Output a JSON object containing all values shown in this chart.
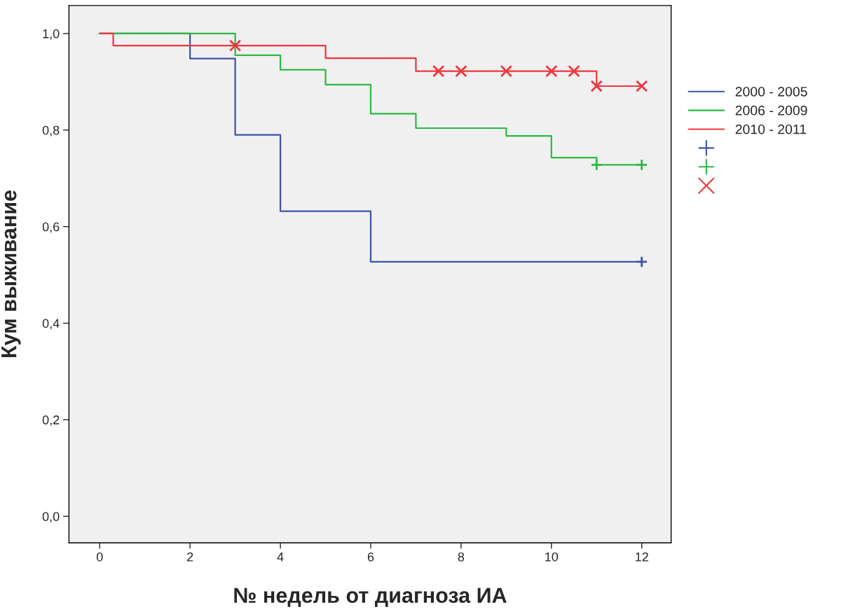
{
  "chart_data": {
    "type": "step",
    "xlabel": "№ недель от диагноза ИА",
    "ylabel": "Кум выживание",
    "xlim": [
      -0.68,
      12.65
    ],
    "ylim": [
      -0.055,
      1.058
    ],
    "xticks": [
      0,
      2,
      4,
      6,
      8,
      10,
      12
    ],
    "yticks": [
      {
        "value": 0,
        "label": "0,0"
      },
      {
        "value": 0.2,
        "label": "0,2"
      },
      {
        "value": 0.4,
        "label": "0,4"
      },
      {
        "value": 0.6,
        "label": "0,6"
      },
      {
        "value": 0.8,
        "label": "0,8"
      },
      {
        "value": 1.0,
        "label": "1,0"
      }
    ],
    "grid": false,
    "legend": "right",
    "series": [
      {
        "name": "2000 - 2005",
        "color": "#3b54a8",
        "x": [
          0,
          2,
          3,
          4,
          6,
          12
        ],
        "values": [
          1.0,
          0.948,
          0.79,
          0.632,
          0.527,
          0.527
        ]
      },
      {
        "name": "2006 - 2009",
        "color": "#2db843",
        "x": [
          0,
          3,
          4,
          5,
          6,
          7,
          9,
          10,
          11,
          12
        ],
        "values": [
          1.0,
          0.955,
          0.925,
          0.894,
          0.834,
          0.804,
          0.788,
          0.743,
          0.728,
          0.728
        ]
      },
      {
        "name": "2010 - 2011",
        "color": "#f0353d",
        "x": [
          0,
          0.3,
          5,
          7,
          11,
          12
        ],
        "values": [
          1.0,
          0.975,
          0.949,
          0.922,
          0.891,
          0.891
        ]
      },
      {
        "type": "scatter",
        "marker": "plus",
        "color": "#3b54a8",
        "x": [
          12
        ],
        "values": [
          0.527
        ]
      },
      {
        "type": "scatter",
        "marker": "plus",
        "color": "#2db843",
        "x": [
          11,
          12
        ],
        "values": [
          0.728,
          0.728
        ]
      },
      {
        "type": "scatter",
        "marker": "cross",
        "color": "#f0353d",
        "x": [
          3,
          7.5,
          8,
          9,
          10,
          10.5,
          11,
          12
        ],
        "values": [
          0.975,
          0.922,
          0.922,
          0.922,
          0.922,
          0.922,
          0.891,
          0.891
        ]
      }
    ]
  }
}
